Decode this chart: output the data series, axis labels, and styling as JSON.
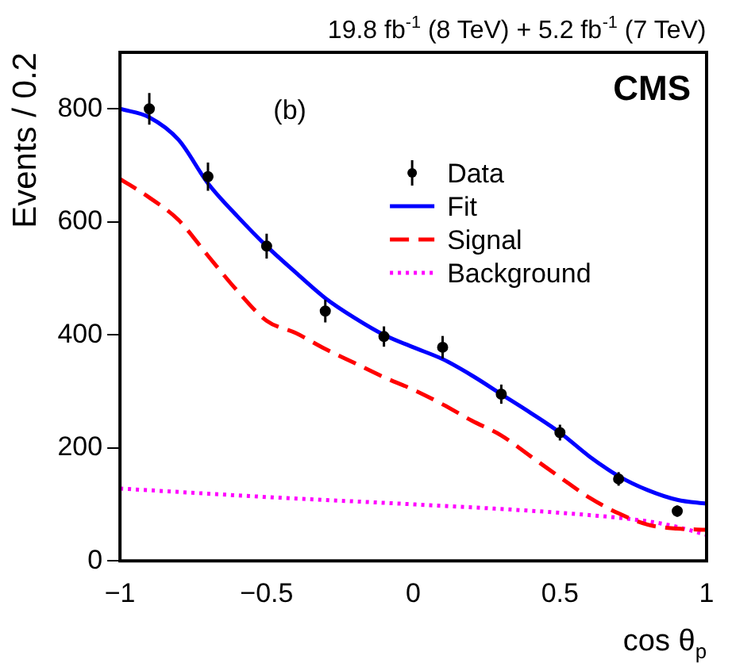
{
  "chart_data": {
    "type": "line",
    "title": "19.8 fb$^{-1}$ (8 TeV) + 5.2 fb$^{-1}$ (7 TeV)",
    "xlabel": "cos θ$_{p}$",
    "ylabel": "Events / 0.2",
    "annotations": [
      "CMS",
      "(b)"
    ],
    "xlim": [
      -1,
      1
    ],
    "xticks": [
      -1,
      -0.5,
      0,
      0.5,
      1
    ],
    "ylim": [
      0,
      900
    ],
    "yticks": [
      0,
      200,
      400,
      600,
      800
    ],
    "legend": "top right",
    "grid": false,
    "series": [
      {
        "name": "Data",
        "type": "scatter",
        "marker": "circle",
        "color": "#000000",
        "x": [
          -0.9,
          -0.7,
          -0.5,
          -0.3,
          -0.1,
          0.1,
          0.3,
          0.5,
          0.7,
          0.9
        ],
        "values": [
          800,
          680,
          557,
          442,
          397,
          378,
          295,
          227,
          145,
          88
        ],
        "errors": [
          28,
          25,
          22,
          20,
          18,
          20,
          17,
          14,
          12,
          10
        ]
      },
      {
        "name": "Fit",
        "line_style": "solid",
        "color": "#0000ff",
        "x": [
          -1,
          -0.9,
          -0.8,
          -0.7,
          -0.6,
          -0.5,
          -0.4,
          -0.3,
          -0.2,
          -0.1,
          0,
          0.1,
          0.2,
          0.3,
          0.4,
          0.5,
          0.6,
          0.7,
          0.8,
          0.9,
          1
        ],
        "values": [
          800,
          785,
          745,
          668,
          610,
          557,
          510,
          465,
          430,
          400,
          378,
          357,
          328,
          295,
          262,
          227,
          185,
          150,
          125,
          108,
          101
        ]
      },
      {
        "name": "Signal",
        "line_style": "dashed",
        "color": "#ff0000",
        "x": [
          -1,
          -0.9,
          -0.8,
          -0.7,
          -0.6,
          -0.5,
          -0.4,
          -0.3,
          -0.2,
          -0.1,
          0,
          0.1,
          0.2,
          0.3,
          0.4,
          0.5,
          0.6,
          0.7,
          0.8,
          0.9,
          1
        ],
        "values": [
          676,
          643,
          603,
          540,
          478,
          425,
          403,
          375,
          350,
          325,
          303,
          277,
          248,
          222,
          185,
          148,
          112,
          84,
          64,
          57,
          55
        ]
      },
      {
        "name": "Background",
        "line_style": "dotted",
        "color": "#ff00ff",
        "x": [
          -1,
          -0.5,
          0,
          0.5,
          0.8,
          0.9,
          1
        ],
        "values": [
          128,
          113,
          100,
          85,
          70,
          60,
          46
        ]
      }
    ]
  }
}
